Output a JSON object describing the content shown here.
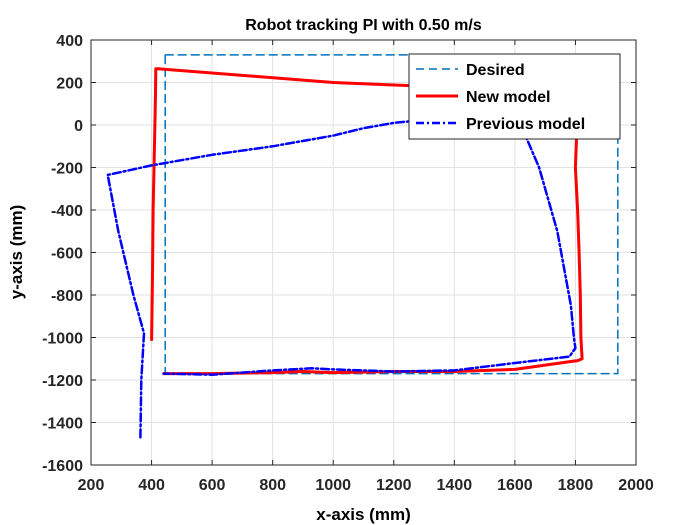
{
  "chart_data": {
    "type": "line",
    "title": "Robot tracking PI with 0.50 m/s",
    "xlabel": "x-axis (mm)",
    "ylabel": "y-axis (mm)",
    "xlim": [
      200,
      2000
    ],
    "ylim": [
      -1600,
      400
    ],
    "xticks": [
      200,
      400,
      600,
      800,
      1000,
      1200,
      1400,
      1600,
      1800,
      2000
    ],
    "yticks": [
      400,
      200,
      0,
      -200,
      -400,
      -600,
      -800,
      -1000,
      -1200,
      -1400,
      -1600
    ],
    "xtick_labels": [
      "200",
      "400",
      "600",
      "800",
      "1000",
      "1200",
      "1400",
      "1600",
      "1800",
      "2000"
    ],
    "ytick_labels": [
      "400",
      "200",
      "0",
      "-200",
      "-400",
      "-600",
      "-800",
      "-1000",
      "-1200",
      "-1400",
      "-1600"
    ],
    "grid": true,
    "legend_position": "top-right",
    "series": [
      {
        "name": "Desired",
        "color": "#0072BD",
        "style": "dashed",
        "x": [
          445,
          1940,
          1940,
          445,
          445
        ],
        "y": [
          330,
          330,
          -1170,
          -1170,
          330
        ]
      },
      {
        "name": "New model",
        "color": "#FF0000",
        "style": "solid",
        "x": [
          400,
          403,
          405,
          408,
          411,
          413,
          414,
          421,
          1000,
          1350,
          1370,
          1330,
          1290,
          1805,
          1800,
          1807,
          1812,
          1816,
          1818,
          1822,
          1805,
          1800,
          1600,
          1400,
          1200,
          1000,
          900,
          800,
          600,
          440
        ],
        "y": [
          -1010,
          -700,
          -400,
          -200,
          0,
          150,
          265,
          265,
          200,
          180,
          170,
          30,
          20,
          0,
          -200,
          -400,
          -600,
          -800,
          -1000,
          -1100,
          -1110,
          -1110,
          -1150,
          -1160,
          -1160,
          -1165,
          -1160,
          -1165,
          -1170,
          -1170
        ]
      },
      {
        "name": "Previous model",
        "color": "#0000FF",
        "style": "dashdot",
        "x": [
          363,
          366,
          375,
          340,
          290,
          255,
          400,
          600,
          800,
          1000,
          1100,
          1200,
          1270,
          1330,
          1360,
          1400,
          1500,
          1620,
          1680,
          1740,
          1785,
          1795,
          1800,
          1780,
          1600,
          1400,
          1200,
          1000,
          930,
          800,
          600,
          440
        ],
        "y": [
          -1470,
          -1200,
          -980,
          -800,
          -500,
          -235,
          -190,
          -140,
          -100,
          -50,
          -15,
          10,
          20,
          25,
          30,
          35,
          30,
          0,
          -200,
          -500,
          -850,
          -1000,
          -1050,
          -1090,
          -1120,
          -1155,
          -1160,
          -1150,
          -1145,
          -1155,
          -1175,
          -1170
        ]
      }
    ]
  }
}
